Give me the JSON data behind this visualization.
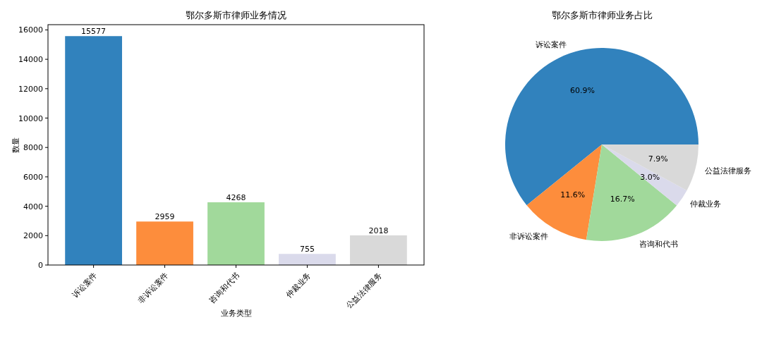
{
  "chart_data": [
    {
      "type": "bar",
      "title": "鄂尔多斯市律师业务情况",
      "xlabel": "业务类型",
      "ylabel": "数量",
      "categories": [
        "诉讼案件",
        "非诉讼案件",
        "咨询和代书",
        "仲裁业务",
        "公益法律服务"
      ],
      "values": [
        15577,
        2959,
        4268,
        755,
        2018
      ],
      "colors": [
        "#3182bd",
        "#fd8d3c",
        "#a1d99b",
        "#dadaeb",
        "#d9d9d9"
      ],
      "ylim": [
        0,
        16356
      ],
      "yticks": [
        0,
        2000,
        4000,
        6000,
        8000,
        10000,
        12000,
        14000,
        16000
      ],
      "data_labels": true,
      "grid": false
    },
    {
      "type": "pie",
      "title": "鄂尔多斯市律师业务占比",
      "categories": [
        "诉讼案件",
        "非诉讼案件",
        "咨询和代书",
        "仲裁业务",
        "公益法律服务"
      ],
      "values": [
        60.9,
        11.6,
        16.7,
        3.0,
        7.9
      ],
      "value_labels": [
        "60.9%",
        "11.6%",
        "16.7%",
        "3.0%",
        "7.9%"
      ],
      "colors": [
        "#3182bd",
        "#fd8d3c",
        "#a1d99b",
        "#dadaeb",
        "#d9d9d9"
      ]
    }
  ]
}
